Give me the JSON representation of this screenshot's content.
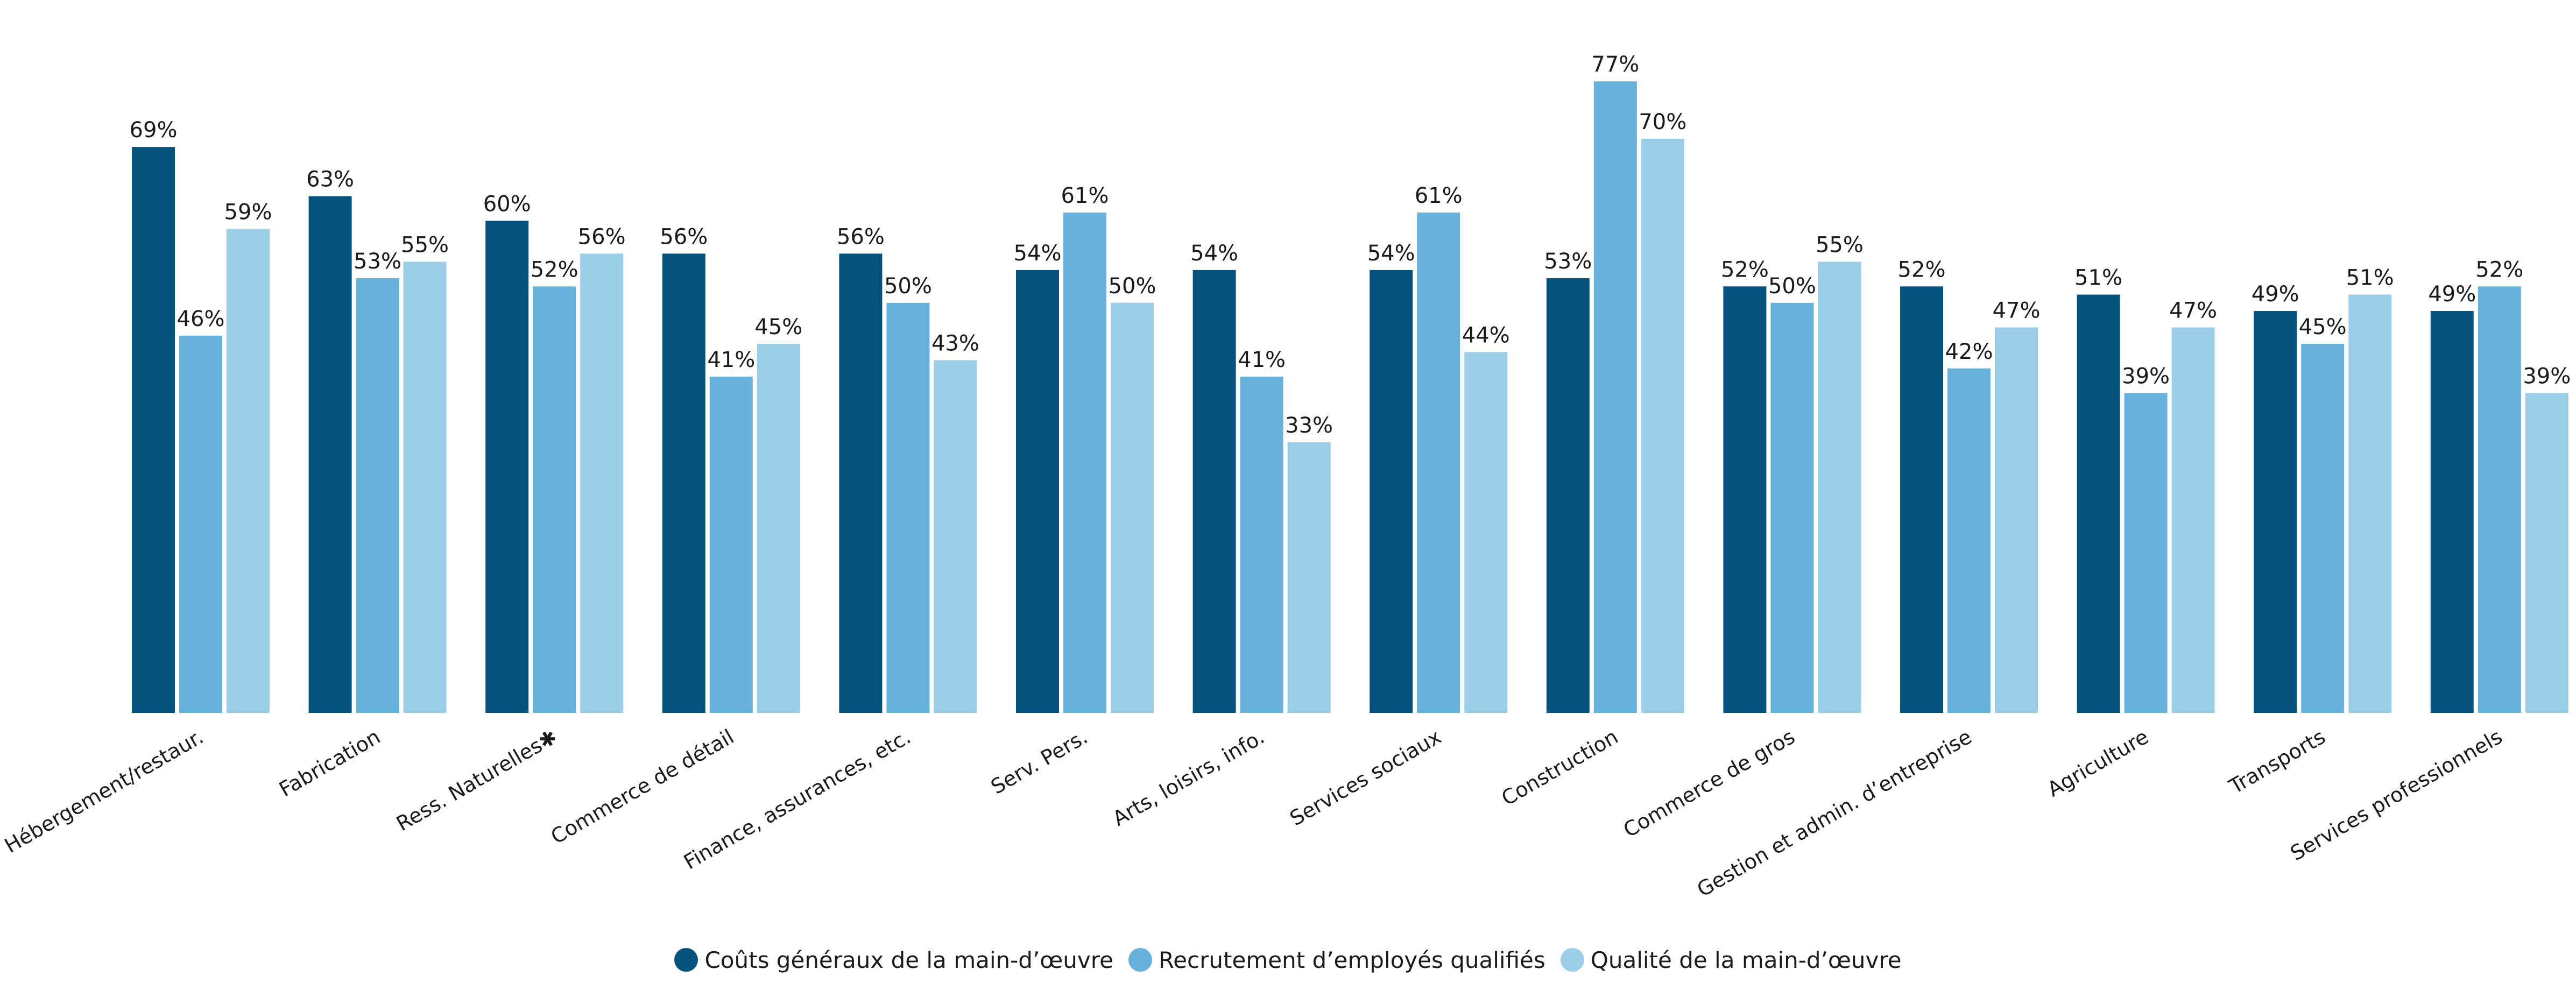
{
  "chart_data": {
    "type": "bar",
    "categories": [
      "Hébergement/restaur.",
      "Fabrication",
      "Ress. Naturelles✱",
      "Commerce de détail",
      "Finance, assurances, etc.",
      "Serv. Pers.",
      "Arts, loisirs, info.",
      "Services sociaux",
      "Construction",
      "Commerce de gros",
      "Gestion et admin. d’entreprise",
      "Agriculture",
      "Transports",
      "Services professionnels"
    ],
    "series": [
      {
        "name": "Coûts généraux de la main-d’œuvre",
        "color": "#04537f",
        "values": [
          69,
          63,
          60,
          56,
          56,
          54,
          54,
          54,
          53,
          52,
          52,
          51,
          49,
          49
        ],
        "labels": [
          "69%",
          "63%",
          "60%",
          "56%",
          "56%",
          "54%",
          "54%",
          "54%",
          "53%",
          "52%",
          "52%",
          "51%",
          "49%",
          "49%"
        ]
      },
      {
        "name": "Recrutement d’employés qualifiés",
        "color": "#67b2dc",
        "values": [
          46,
          53,
          52,
          41,
          50,
          61,
          41,
          61,
          77,
          50,
          42,
          39,
          45,
          52
        ],
        "labels": [
          "46%",
          "53%",
          "52%",
          "41%",
          "50%",
          "61%",
          "41%",
          "61%",
          "77%",
          "50%",
          "42%",
          "39%",
          "45%",
          "52%"
        ]
      },
      {
        "name": "Qualité de la main-d’œuvre",
        "color": "#9ccde9",
        "values": [
          59,
          55,
          56,
          45,
          43,
          50,
          33,
          44,
          70,
          55,
          47,
          47,
          51,
          39
        ],
        "labels": [
          "59%",
          "55%",
          "56%",
          "45%",
          "43%",
          "50%",
          "33%",
          "44%",
          "70%",
          "55%",
          "47%",
          "47%",
          "51%",
          "39%"
        ]
      }
    ],
    "ylim": [
      0,
      82
    ],
    "grid": false,
    "legend_position": "bottom-center"
  }
}
